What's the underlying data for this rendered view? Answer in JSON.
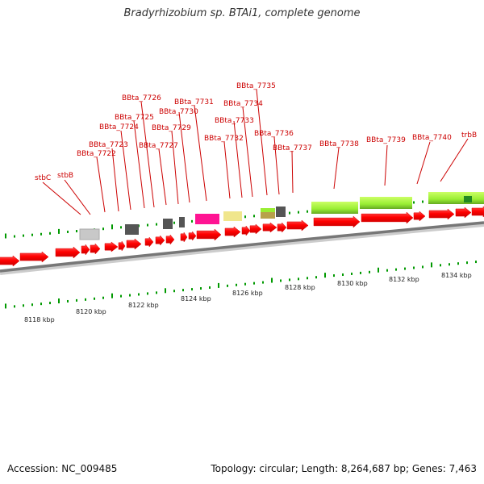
{
  "title": "Bradyrhizobium sp. BTAi1, complete genome",
  "footer": {
    "accession": "Accession: NC_009485",
    "topology": "Topology: circular; Length: 8,264,687 bp; Genes: 7,463"
  },
  "scale_labels": [
    "8118 kbp",
    "8120 kbp",
    "8122 kbp",
    "8124 kbp",
    "8126 kbp",
    "8128 kbp",
    "8130 kbp",
    "8132 kbp",
    "8134 kbp"
  ],
  "gene_labels": [
    "stbC",
    "stbB",
    "BBta_7722",
    "BBta_7723",
    "BBta_7724",
    "BBta_7725",
    "BBta_7726",
    "BBta_7727",
    "BBta_7729",
    "BBta_7730",
    "BBta_7731",
    "BBta_7732",
    "BBta_7733",
    "BBta_7734",
    "BBta_7735",
    "BBta_7736",
    "BBta_7737",
    "BBta_7738",
    "BBta_7739",
    "BBta_7740",
    "trbB"
  ],
  "colors": {
    "gene": "#ff0000",
    "label": "#cc0000",
    "tick": "#009900",
    "backbone": "#888888",
    "feature_light_gray": "#c8c8c8",
    "feature_dark_gray": "#555555",
    "feature_magenta": "#ff1493",
    "feature_khaki": "#f0e68c",
    "feature_olive": "#b8a14a",
    "feature_lime": "#99ee33"
  }
}
